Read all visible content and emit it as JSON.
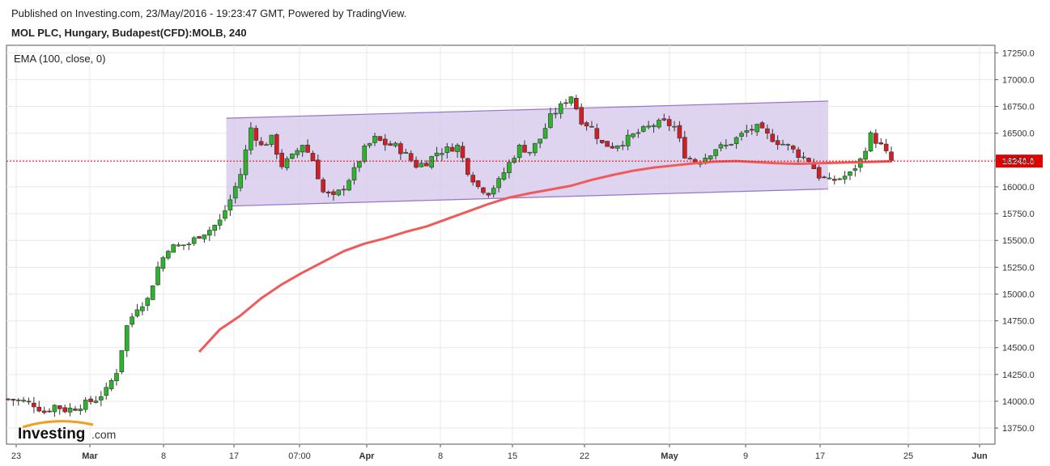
{
  "header": {
    "published": "Published on Investing.com, 23/May/2016 - 19:23:47 GMT, Powered by TradingView.",
    "instrument": "MOL PLC, Hungary, Budapest(CFD):MOLB, 240"
  },
  "indicator_label": "EMA (100, close, 0)",
  "watermark": {
    "brand": "Investing",
    "suffix": ".com"
  },
  "colors": {
    "up": "#2bb52b",
    "down": "#d11f25",
    "ema": "#ef5b5b",
    "channel_fill": "#d8ccec",
    "channel_line": "#9575c4",
    "last_price_line": "#e00000",
    "grid": "#e8e8e8"
  },
  "chart_data": {
    "type": "candlestick",
    "ylim": [
      13600,
      17320
    ],
    "y_ticks": [
      "13750.0",
      "14000.0",
      "14250.0",
      "14500.0",
      "14750.0",
      "15000.0",
      "15250.0",
      "15500.0",
      "15750.0",
      "16000.0",
      "16250.0",
      "16500.0",
      "16750.0",
      "17000.0",
      "17250.0"
    ],
    "x_ticks": [
      "23",
      "Mar",
      "8",
      "17",
      "07:00",
      "Apr",
      "8",
      "15",
      "22",
      "May",
      "9",
      "17",
      "25",
      "Jun"
    ],
    "last_price_label": "16240.0",
    "last_price": 16240,
    "grid": true,
    "price_series": [
      [
        0,
        14020
      ],
      [
        3,
        14000
      ],
      [
        5,
        13970
      ],
      [
        7,
        13900
      ],
      [
        9,
        13960
      ],
      [
        11,
        13920
      ],
      [
        13,
        13940
      ],
      [
        15,
        13980
      ],
      [
        17,
        14020
      ],
      [
        19,
        14100
      ],
      [
        21,
        14280
      ],
      [
        23,
        14700
      ],
      [
        25,
        14880
      ],
      [
        27,
        14950
      ],
      [
        29,
        15250
      ],
      [
        31,
        15430
      ],
      [
        33,
        15450
      ],
      [
        35,
        15470
      ],
      [
        37,
        15550
      ],
      [
        39,
        15600
      ],
      [
        41,
        15680
      ],
      [
        43,
        15880
      ],
      [
        45,
        16120
      ],
      [
        47,
        16550
      ],
      [
        49,
        16380
      ],
      [
        51,
        16450
      ],
      [
        53,
        16200
      ],
      [
        55,
        16280
      ],
      [
        57,
        16400
      ],
      [
        59,
        16250
      ],
      [
        61,
        15950
      ],
      [
        63,
        15900
      ],
      [
        65,
        16000
      ],
      [
        67,
        16150
      ],
      [
        69,
        16350
      ],
      [
        71,
        16450
      ],
      [
        73,
        16400
      ],
      [
        75,
        16380
      ],
      [
        77,
        16300
      ],
      [
        79,
        16200
      ],
      [
        81,
        16230
      ],
      [
        83,
        16320
      ],
      [
        85,
        16350
      ],
      [
        87,
        16380
      ],
      [
        89,
        16150
      ],
      [
        91,
        16000
      ],
      [
        93,
        15950
      ],
      [
        95,
        16050
      ],
      [
        97,
        16220
      ],
      [
        99,
        16370
      ],
      [
        101,
        16330
      ],
      [
        103,
        16450
      ],
      [
        105,
        16650
      ],
      [
        107,
        16750
      ],
      [
        109,
        16850
      ],
      [
        111,
        16620
      ],
      [
        113,
        16550
      ],
      [
        115,
        16400
      ],
      [
        117,
        16380
      ],
      [
        119,
        16420
      ],
      [
        121,
        16480
      ],
      [
        123,
        16530
      ],
      [
        125,
        16580
      ],
      [
        127,
        16600
      ],
      [
        129,
        16560
      ],
      [
        131,
        16300
      ],
      [
        133,
        16230
      ],
      [
        135,
        16280
      ],
      [
        137,
        16360
      ],
      [
        139,
        16380
      ],
      [
        141,
        16450
      ],
      [
        143,
        16520
      ],
      [
        145,
        16550
      ],
      [
        147,
        16480
      ],
      [
        149,
        16420
      ],
      [
        151,
        16380
      ],
      [
        153,
        16300
      ],
      [
        155,
        16250
      ],
      [
        157,
        16100
      ],
      [
        159,
        16050
      ],
      [
        161,
        16080
      ],
      [
        163,
        16120
      ],
      [
        165,
        16250
      ],
      [
        167,
        16480
      ],
      [
        169,
        16380
      ],
      [
        171,
        16240
      ]
    ],
    "ema_series": [
      [
        37,
        14460
      ],
      [
        41,
        14670
      ],
      [
        45,
        14800
      ],
      [
        49,
        14960
      ],
      [
        53,
        15090
      ],
      [
        57,
        15200
      ],
      [
        61,
        15300
      ],
      [
        65,
        15400
      ],
      [
        69,
        15470
      ],
      [
        73,
        15520
      ],
      [
        77,
        15580
      ],
      [
        81,
        15630
      ],
      [
        85,
        15700
      ],
      [
        89,
        15770
      ],
      [
        93,
        15840
      ],
      [
        97,
        15900
      ],
      [
        101,
        15940
      ],
      [
        105,
        15975
      ],
      [
        109,
        16010
      ],
      [
        113,
        16065
      ],
      [
        117,
        16110
      ],
      [
        121,
        16150
      ],
      [
        125,
        16180
      ],
      [
        129,
        16200
      ],
      [
        133,
        16220
      ],
      [
        137,
        16235
      ],
      [
        141,
        16240
      ],
      [
        145,
        16230
      ],
      [
        149,
        16220
      ],
      [
        153,
        16215
      ],
      [
        157,
        16220
      ],
      [
        161,
        16225
      ],
      [
        165,
        16230
      ],
      [
        169,
        16235
      ],
      [
        171,
        16238
      ]
    ],
    "channel": {
      "upper": [
        [
          31,
          16640
        ],
        [
          133,
          16800
        ]
      ],
      "lower": [
        [
          31,
          15820
        ],
        [
          133,
          15980
        ]
      ]
    }
  }
}
